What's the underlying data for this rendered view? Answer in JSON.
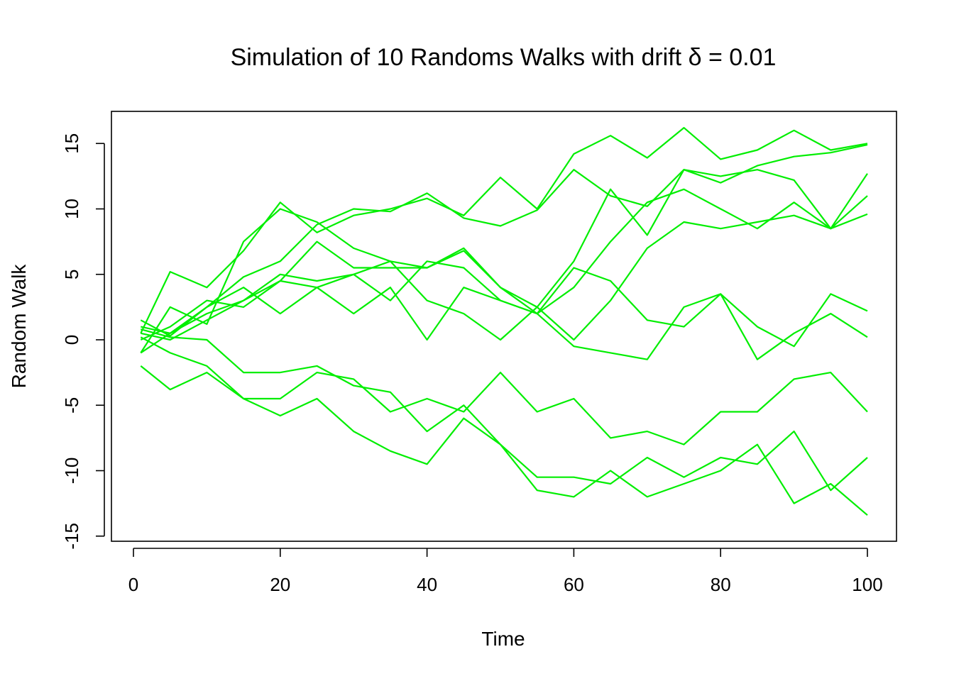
{
  "chart_data": {
    "type": "line",
    "title": "Simulation of 10 Randoms Walks with drift δ =  0.01",
    "xlabel": "Time",
    "ylabel": "Random Walk",
    "xlim": [
      1,
      100
    ],
    "ylim": [
      -15,
      16.3
    ],
    "x_ticks": [
      0,
      20,
      40,
      60,
      80,
      100
    ],
    "y_ticks": [
      -15,
      -10,
      -5,
      0,
      5,
      10,
      15
    ],
    "grid": false,
    "legend": "none",
    "line_color": "#00ee00",
    "x": [
      1,
      5,
      10,
      15,
      20,
      25,
      30,
      35,
      40,
      45,
      50,
      55,
      60,
      65,
      70,
      75,
      80,
      85,
      90,
      95,
      100
    ],
    "series": [
      {
        "values": [
          0.5,
          5.2,
          4.0,
          6.8,
          10.5,
          8.2,
          9.5,
          10.0,
          10.8,
          9.5,
          12.4,
          10.0,
          14.2,
          15.6,
          13.9,
          16.2,
          13.8,
          14.5,
          16.0,
          14.5,
          15.0
        ]
      },
      {
        "values": [
          1.0,
          0.5,
          2.5,
          4.8,
          6.0,
          8.8,
          10.0,
          9.8,
          11.2,
          9.3,
          8.7,
          9.9,
          13.0,
          11.0,
          10.2,
          13.0,
          12.0,
          13.3,
          14.0,
          14.3,
          14.9
        ]
      },
      {
        "values": [
          -1.0,
          2.5,
          1.2,
          7.5,
          10.0,
          9.0,
          7.0,
          6.0,
          5.5,
          6.8,
          4.0,
          2.5,
          6.0,
          11.5,
          8.0,
          13.0,
          12.5,
          13.0,
          12.2,
          8.5,
          12.7
        ]
      },
      {
        "values": [
          -1.0,
          0.5,
          2.0,
          3.0,
          4.5,
          7.5,
          5.5,
          5.5,
          5.5,
          7.0,
          4.0,
          2.0,
          4.0,
          7.5,
          10.5,
          11.5,
          10.0,
          8.5,
          10.5,
          8.5,
          11.0
        ]
      },
      {
        "values": [
          1.5,
          0.3,
          2.5,
          4.0,
          2.0,
          4.0,
          5.0,
          6.0,
          3.0,
          2.0,
          0.0,
          2.5,
          0.0,
          3.0,
          7.0,
          9.0,
          8.5,
          9.0,
          9.5,
          8.5,
          9.6
        ]
      },
      {
        "values": [
          0.0,
          1.0,
          3.0,
          2.5,
          4.5,
          4.0,
          2.0,
          4.0,
          0.0,
          4.0,
          3.0,
          2.0,
          5.5,
          4.5,
          1.5,
          1.0,
          3.5,
          1.0,
          -0.5,
          3.5,
          2.2
        ]
      },
      {
        "values": [
          0.5,
          0.0,
          1.5,
          3.0,
          5.0,
          4.5,
          5.0,
          3.0,
          6.0,
          5.5,
          3.0,
          2.0,
          -0.5,
          -1.0,
          -1.5,
          2.5,
          3.5,
          -1.5,
          0.5,
          2.0,
          0.2
        ]
      },
      {
        "values": [
          -2.0,
          -3.8,
          -2.5,
          -4.5,
          -4.5,
          -2.5,
          -3.0,
          -5.5,
          -4.5,
          -5.5,
          -2.5,
          -5.5,
          -4.5,
          -7.5,
          -7.0,
          -8.0,
          -5.5,
          -5.5,
          -3.0,
          -2.5,
          -5.5
        ]
      },
      {
        "values": [
          0.8,
          0.2,
          0.0,
          -2.5,
          -2.5,
          -2.0,
          -3.5,
          -4.0,
          -7.0,
          -5.0,
          -8.0,
          -10.5,
          -10.5,
          -11.0,
          -9.0,
          -10.5,
          -9.0,
          -9.5,
          -7.0,
          -11.5,
          -9.0
        ]
      },
      {
        "values": [
          0.2,
          -1.0,
          -2.0,
          -4.5,
          -5.8,
          -4.5,
          -7.0,
          -8.5,
          -9.5,
          -6.0,
          -8.0,
          -11.5,
          -12.0,
          -10.0,
          -12.0,
          -11.0,
          -10.0,
          -8.0,
          -12.5,
          -11.0,
          -13.4
        ]
      }
    ]
  }
}
